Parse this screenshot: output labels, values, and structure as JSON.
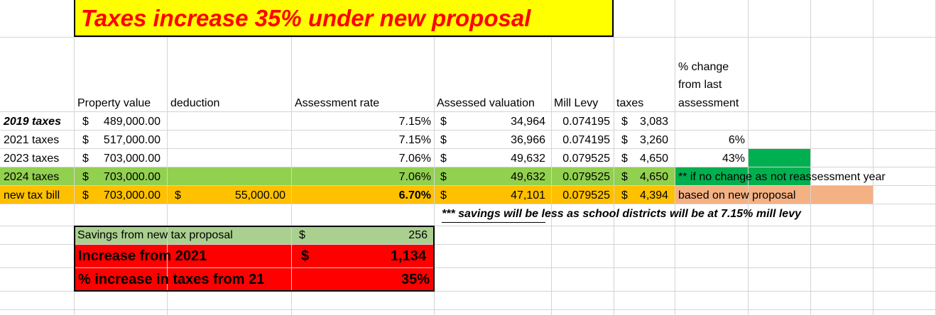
{
  "title": "Taxes increase 35% under new proposal",
  "headers": {
    "property_value": "Property value",
    "deduction": "deduction",
    "assessment_rate": "Assessment rate",
    "assessed_valuation": "Assessed valuation",
    "mill_levy": "Mill Levy",
    "taxes": "taxes",
    "pct_change_1": "% change",
    "pct_change_2": "from last",
    "pct_change_3": "assessment"
  },
  "rows": [
    {
      "label": "2019 taxes",
      "pv_sym": "$",
      "pv": "489,000.00",
      "ded_sym": "",
      "ded": "",
      "rate": "7.15%",
      "av_sym": "$",
      "av": "34,964",
      "mill": "0.074195",
      "tax_sym": "$",
      "tax": "3,083",
      "change": "",
      "note": ""
    },
    {
      "label": "2021 taxes",
      "pv_sym": "$",
      "pv": "517,000.00",
      "ded_sym": "",
      "ded": "",
      "rate": "7.15%",
      "av_sym": "$",
      "av": "36,966",
      "mill": "0.074195",
      "tax_sym": "$",
      "tax": "3,260",
      "change": "6%",
      "note": ""
    },
    {
      "label": "2023 taxes",
      "pv_sym": "$",
      "pv": "703,000.00",
      "ded_sym": "",
      "ded": "",
      "rate": "7.06%",
      "av_sym": "$",
      "av": "49,632",
      "mill": "0.079525",
      "tax_sym": "$",
      "tax": "4,650",
      "change": "43%",
      "note": ""
    },
    {
      "label": "2024 taxes",
      "pv_sym": "$",
      "pv": "703,000.00",
      "ded_sym": "",
      "ded": "",
      "rate": "7.06%",
      "av_sym": "$",
      "av": "49,632",
      "mill": "0.079525",
      "tax_sym": "$",
      "tax": "4,650",
      "change": "",
      "note": "** if no change as not reassessment year"
    },
    {
      "label": "new tax bill",
      "pv_sym": "$",
      "pv": "703,000.00",
      "ded_sym": "$",
      "ded": "55,000.00",
      "rate": "6.70%",
      "av_sym": "$",
      "av": "47,101",
      "mill": "0.079525",
      "tax_sym": "$",
      "tax": "4,394",
      "change": "",
      "note": "based on new proposal"
    }
  ],
  "footnote": "*** savings will be less as school districts will be at 7.15% mill levy",
  "summary": {
    "savings_label": "Savings from new tax proposal",
    "savings_sym": "$",
    "savings_value": "256",
    "increase_label": "Increase from 2021",
    "increase_sym": "$",
    "increase_value": "1,134",
    "pct_label": "% increase in taxes from 21",
    "pct_value": "35%"
  },
  "colors": {
    "banner_bg": "#ffff00",
    "banner_text": "#ff0000",
    "row_2024_bg": "#92d050",
    "row_new_bg": "#ffc000",
    "note_new_bg": "#f4b183",
    "green_accent": "#00b050",
    "savings_bg": "#a9d08e",
    "increase_bg": "#ff0000"
  }
}
